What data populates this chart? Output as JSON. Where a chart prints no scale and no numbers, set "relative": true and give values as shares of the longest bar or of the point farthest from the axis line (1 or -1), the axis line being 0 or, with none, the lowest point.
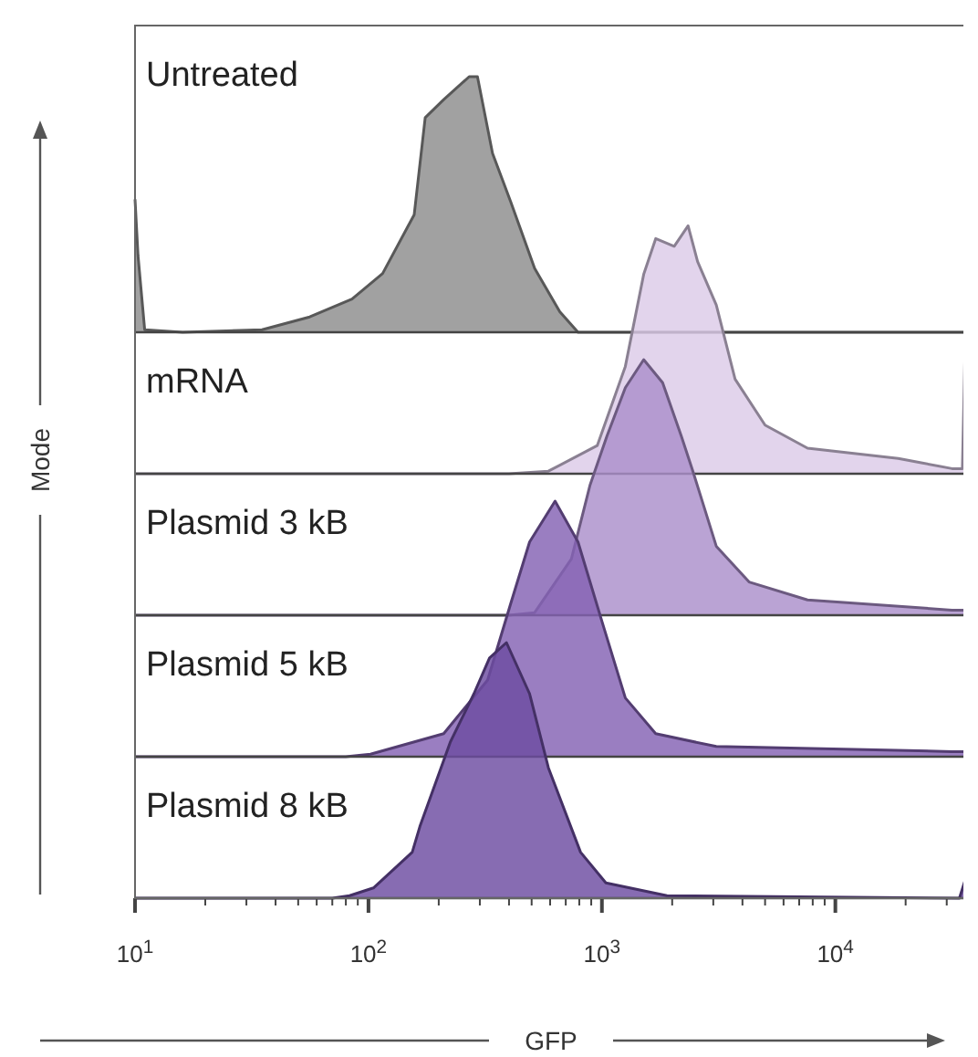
{
  "chart_data": [
    {
      "type": "area",
      "title": "Untreated",
      "ylabel": "Mode",
      "relative": true,
      "log": "x",
      "xlim": [
        10,
        38000
      ],
      "tick_labels": false,
      "series": [
        {
          "color": "#8c8c8c",
          "x": [
            10,
            10.3,
            11,
            16,
            35,
            56,
            85,
            115,
            157,
            175,
            210,
            270,
            293,
            340,
            407,
            515,
            660,
            790,
            38000
          ],
          "values": [
            0.52,
            0.3,
            0.01,
            0,
            0.01,
            0.06,
            0.13,
            0.23,
            0.46,
            0.84,
            0.91,
            1,
            1,
            0.7,
            0.51,
            0.25,
            0.08,
            0,
            0
          ]
        }
      ]
    },
    {
      "type": "area",
      "title": "mRNA",
      "relative": true,
      "log": "x",
      "xlim": [
        10,
        38000
      ],
      "tick_labels": false,
      "series": [
        {
          "color": "#dccbe8",
          "x": [
            10,
            400,
            590,
            955,
            1260,
            1510,
            1700,
            2040,
            2340,
            2570,
            3090,
            3720,
            5000,
            7600,
            18600,
            31600,
            35000,
            37000,
            38000
          ],
          "values": [
            0,
            0,
            0.01,
            0.11,
            0.42,
            0.78,
            0.92,
            0.89,
            0.97,
            0.83,
            0.66,
            0.37,
            0.19,
            0.1,
            0.06,
            0.02,
            0.02,
            1,
            1
          ]
        }
      ]
    },
    {
      "type": "area",
      "title": "Plasmid 3 kB",
      "relative": true,
      "log": "x",
      "xlim": [
        10,
        38000
      ],
      "tick_labels": false,
      "series": [
        {
          "color": "#ab8fcb",
          "x": [
            10,
            400,
            515,
            740,
            890,
            1050,
            1260,
            1510,
            1820,
            2190,
            2460,
            3090,
            4270,
            7600,
            31600,
            38000
          ],
          "values": [
            0,
            0,
            0.01,
            0.22,
            0.51,
            0.7,
            0.89,
            1,
            0.91,
            0.7,
            0.56,
            0.27,
            0.13,
            0.06,
            0.02,
            0.02
          ]
        }
      ]
    },
    {
      "type": "area",
      "title": "Plasmid 5 kB",
      "relative": true,
      "log": "x",
      "xlim": [
        10,
        38000
      ],
      "tick_labels": false,
      "series": [
        {
          "color": "#8461b3",
          "x": [
            10,
            80,
            102,
            210,
            324,
            407,
            490,
            630,
            790,
            1000,
            1260,
            1700,
            3090,
            31600,
            38000
          ],
          "values": [
            0,
            0,
            0.01,
            0.09,
            0.3,
            0.6,
            0.84,
            1,
            0.84,
            0.53,
            0.23,
            0.09,
            0.04,
            0.02,
            0.02
          ]
        }
      ]
    },
    {
      "type": "area",
      "title": "Plasmid 8 kB",
      "xlabel": "GFP",
      "relative": true,
      "log": "x",
      "xlim": [
        10,
        38000
      ],
      "xticks": [
        {
          "value": 10,
          "label": "10$^{1}$"
        },
        {
          "value": 20,
          "label": null
        },
        {
          "value": 30,
          "label": null
        },
        {
          "value": 40,
          "label": null
        },
        {
          "value": 50,
          "label": null
        },
        {
          "value": 60,
          "label": null
        },
        {
          "value": 70,
          "label": null
        },
        {
          "value": 80,
          "label": null
        },
        {
          "value": 90,
          "label": null
        },
        {
          "value": 100,
          "label": "10$^{2}$"
        },
        {
          "value": 200,
          "label": null
        },
        {
          "value": 300,
          "label": null
        },
        {
          "value": 400,
          "label": null
        },
        {
          "value": 500,
          "label": null
        },
        {
          "value": 600,
          "label": null
        },
        {
          "value": 700,
          "label": null
        },
        {
          "value": 800,
          "label": null
        },
        {
          "value": 900,
          "label": null
        },
        {
          "value": 1000,
          "label": "10$^{3}$"
        },
        {
          "value": 2000,
          "label": null
        },
        {
          "value": 3000,
          "label": null
        },
        {
          "value": 4000,
          "label": null
        },
        {
          "value": 5000,
          "label": null
        },
        {
          "value": 6000,
          "label": null
        },
        {
          "value": 7000,
          "label": null
        },
        {
          "value": 8000,
          "label": null
        },
        {
          "value": 9000,
          "label": null
        },
        {
          "value": 10000,
          "label": "10$^{4}$"
        },
        {
          "value": 20000,
          "label": null
        },
        {
          "value": 30000,
          "label": null
        }
      ],
      "series": [
        {
          "color": "#6c4ca1",
          "x": [
            10,
            70,
            83,
            105,
            154,
            166,
            224,
            283,
            330,
            390,
            490,
            590,
            810,
            1040,
            1900,
            34000,
            38000
          ],
          "values": [
            0,
            0,
            0.01,
            0.04,
            0.18,
            0.28,
            0.61,
            0.8,
            0.94,
            1,
            0.8,
            0.51,
            0.18,
            0.06,
            0.01,
            0,
            0.14
          ]
        }
      ]
    }
  ]
}
